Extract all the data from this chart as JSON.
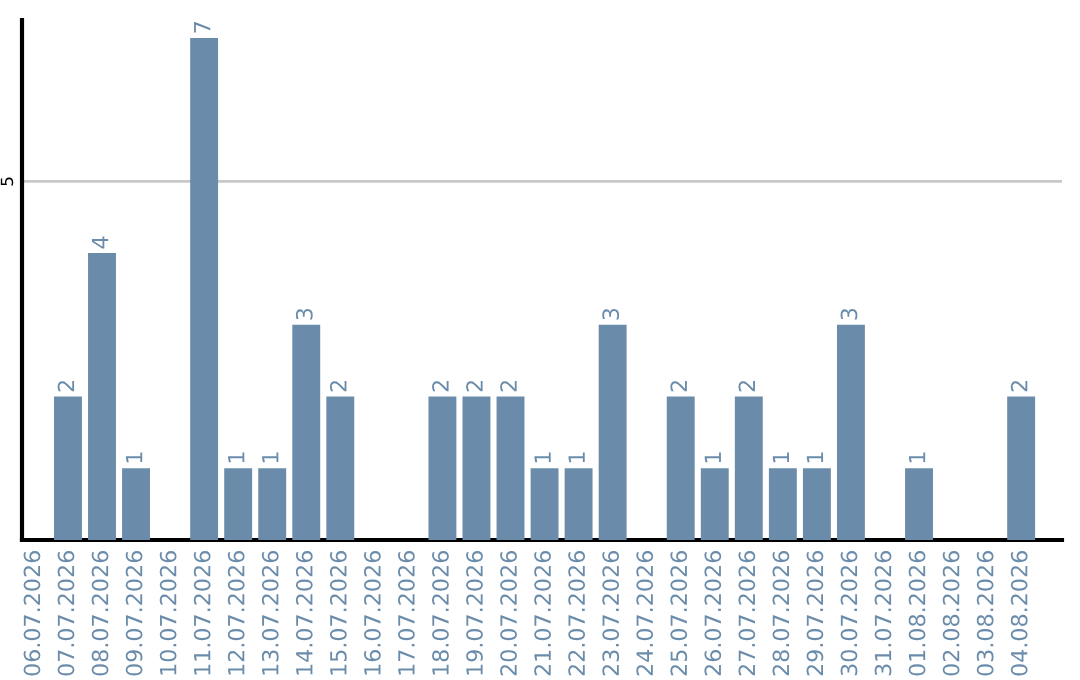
{
  "chart_data": {
    "type": "bar",
    "categories": [
      "06.07.2026",
      "07.07.2026",
      "08.07.2026",
      "09.07.2026",
      "10.07.2026",
      "11.07.2026",
      "12.07.2026",
      "13.07.2026",
      "14.07.2026",
      "15.07.2026",
      "16.07.2026",
      "17.07.2026",
      "18.07.2026",
      "19.07.2026",
      "20.07.2026",
      "21.07.2026",
      "22.07.2026",
      "23.07.2026",
      "24.07.2026",
      "25.07.2026",
      "26.07.2026",
      "27.07.2026",
      "28.07.2026",
      "29.07.2026",
      "30.07.2026",
      "31.07.2026",
      "01.08.2026",
      "02.08.2026",
      "03.08.2026",
      "04.08.2026"
    ],
    "values": [
      0,
      2,
      4,
      1,
      0,
      7,
      1,
      1,
      3,
      2,
      0,
      0,
      2,
      2,
      2,
      1,
      1,
      3,
      0,
      2,
      1,
      2,
      1,
      1,
      3,
      0,
      1,
      0,
      0,
      2
    ],
    "value_labels": [
      null,
      "2",
      "4",
      "1",
      null,
      "7",
      "1",
      "1",
      "3",
      "2",
      null,
      null,
      "2",
      "2",
      "2",
      "1",
      "1",
      "3",
      null,
      "2",
      "1",
      "2",
      "1",
      "1",
      "3",
      null,
      "1",
      null,
      null,
      "2"
    ],
    "color": "#6a8caa",
    "ylim": [
      0,
      7.25
    ],
    "yticks": [
      5
    ],
    "grid": "y"
  }
}
